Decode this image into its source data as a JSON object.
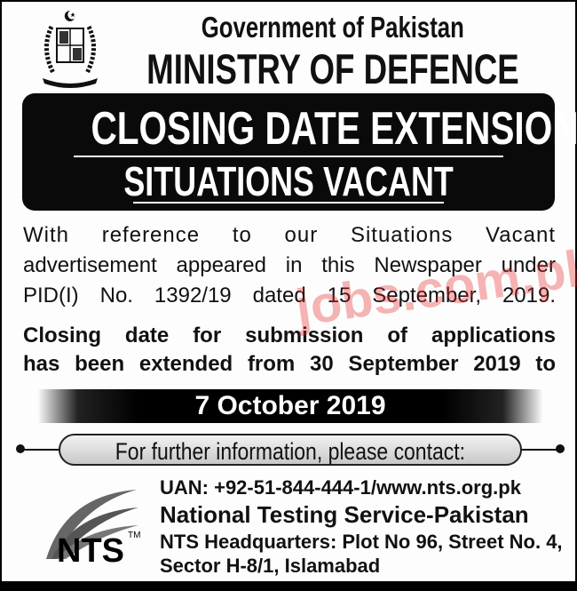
{
  "header": {
    "line1": "Government of Pakistan",
    "line2": "MINISTRY OF DEFENCE"
  },
  "banner": {
    "title": "CLOSING DATE EXTENSION",
    "subtitle": "SITUATIONS VACANT"
  },
  "body": {
    "reference": [
      "With reference to our Situations Vacant",
      "advertisement appeared in this Newspaper under",
      "PID(I) No. 1392/19 dated 15 September, 2019."
    ],
    "notice": [
      "Closing date for submission of applications",
      "has been extended from 30 September 2019 to"
    ],
    "new_date": "7 October 2019"
  },
  "contact": {
    "heading": "For further information, please contact:",
    "uan": "UAN: +92-51-844-444-1/www.nts.org.pk",
    "org": "National Testing Service-Pakistan",
    "address1": "NTS Headquarters: Plot No 96, Street No. 4,",
    "address2": "Sector H-8/1, Islamabad"
  },
  "logo": {
    "text": "NTS",
    "tm": "TM"
  },
  "watermark": "jobs.com.pk",
  "colors": {
    "banner": "#0a0a0a",
    "watermark": "#e62828"
  }
}
